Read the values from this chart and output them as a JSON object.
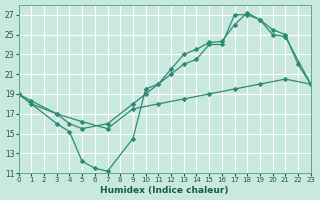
{
  "background_color": "#c8e8e0",
  "grid_color": "#ffffff",
  "line_color": "#2e8b70",
  "xlabel": "Humidex (Indice chaleur)",
  "xlim": [
    0,
    23
  ],
  "ylim": [
    11,
    28
  ],
  "yticks": [
    11,
    13,
    15,
    17,
    19,
    21,
    23,
    25,
    27
  ],
  "xticks": [
    0,
    1,
    2,
    3,
    4,
    5,
    6,
    7,
    8,
    9,
    10,
    11,
    12,
    13,
    14,
    15,
    16,
    17,
    18,
    19,
    20,
    21,
    22,
    23
  ],
  "line1_x": [
    0,
    1,
    3,
    4,
    5,
    7,
    9,
    10,
    11,
    12,
    13,
    14,
    15,
    16,
    17,
    18,
    19,
    20,
    21,
    22,
    23
  ],
  "line1_y": [
    19,
    18,
    17,
    16,
    15.5,
    16,
    18,
    19,
    20,
    21,
    22,
    22.5,
    24,
    24,
    27,
    27,
    26.5,
    25.5,
    25,
    22,
    20
  ],
  "line2_x": [
    0,
    3,
    4,
    5,
    6,
    7,
    9,
    10,
    11,
    12,
    13,
    14,
    15,
    16,
    17,
    18,
    19,
    20,
    21,
    23
  ],
  "line2_y": [
    19,
    16,
    15.2,
    12.2,
    11.5,
    11.2,
    14.5,
    19.5,
    20,
    21.5,
    23,
    23.5,
    24.2,
    24.3,
    26,
    27.2,
    26.5,
    25,
    24.8,
    20
  ],
  "line3_x": [
    0,
    1,
    3,
    5,
    7,
    9,
    11,
    13,
    15,
    17,
    19,
    21,
    23
  ],
  "line3_y": [
    19,
    18.3,
    17.0,
    16.2,
    15.5,
    17.5,
    18.0,
    18.5,
    19.0,
    19.5,
    20.0,
    20.5,
    20.0
  ]
}
